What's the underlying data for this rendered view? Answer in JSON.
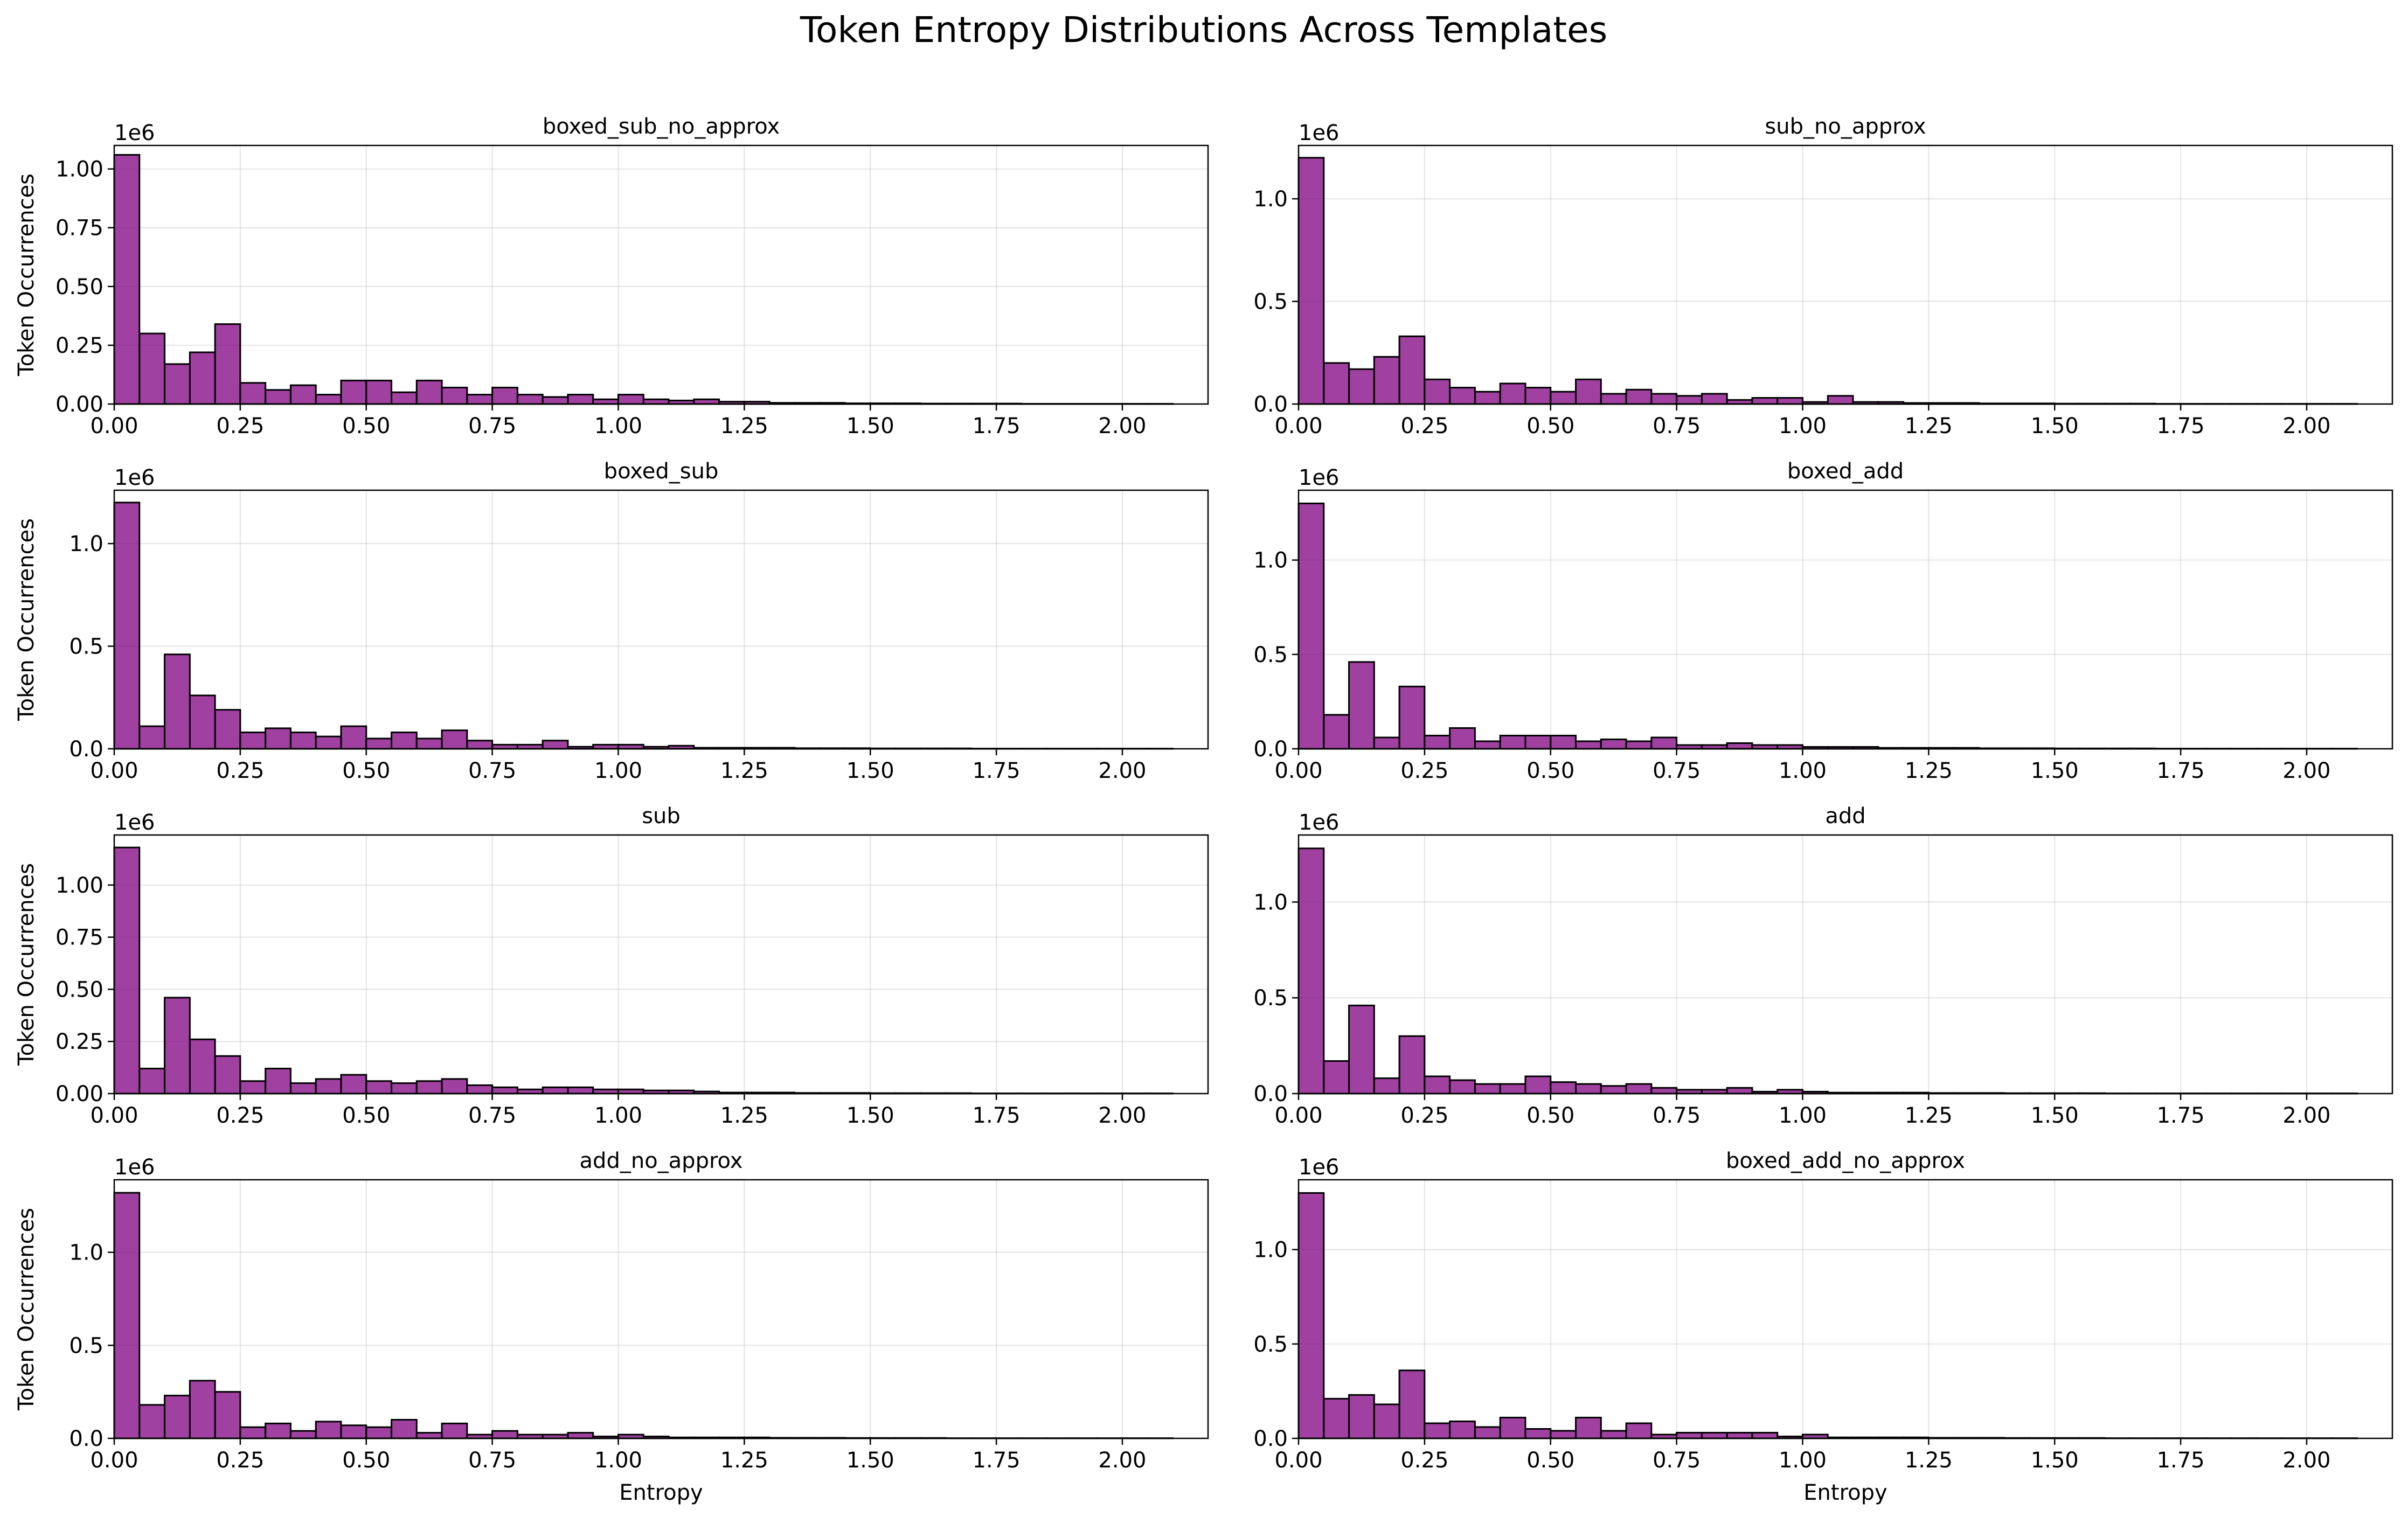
{
  "figure": {
    "title": "Token Entropy Distributions Across Templates",
    "bar_color": "#800080",
    "bar_edge_color": "#000000"
  },
  "chart_data": [
    {
      "type": "bar",
      "title": "boxed_sub_no_approx",
      "xlabel": "",
      "ylabel": "Token Occurrences",
      "y_offset_label": "1e6",
      "xlim": [
        0,
        2.17
      ],
      "ylim": [
        0,
        1.1
      ],
      "xticks": [
        "0.00",
        "0.25",
        "0.50",
        "0.75",
        "1.00",
        "1.25",
        "1.50",
        "1.75",
        "2.00"
      ],
      "yticks": [
        "0.00",
        "0.25",
        "0.50",
        "0.75",
        "1.00"
      ],
      "bin_width": 0.05,
      "values": [
        1.06,
        0.3,
        0.17,
        0.22,
        0.34,
        0.09,
        0.06,
        0.08,
        0.04,
        0.1,
        0.1,
        0.05,
        0.1,
        0.07,
        0.04,
        0.07,
        0.04,
        0.03,
        0.04,
        0.02,
        0.04,
        0.02,
        0.015,
        0.02,
        0.01,
        0.01,
        0.005,
        0.005,
        0.005,
        0.003,
        0.003,
        0.003,
        0.002,
        0.002,
        0.002,
        0.002,
        0.001,
        0.001,
        0.001,
        0.001,
        0.001,
        0.001
      ]
    },
    {
      "type": "bar",
      "title": "sub_no_approx",
      "xlabel": "",
      "ylabel": "",
      "y_offset_label": "1e6",
      "xlim": [
        0,
        2.17
      ],
      "ylim": [
        0,
        1.26
      ],
      "xticks": [
        "0.00",
        "0.25",
        "0.50",
        "0.75",
        "1.00",
        "1.25",
        "1.50",
        "1.75",
        "2.00"
      ],
      "yticks": [
        "0.0",
        "0.5",
        "1.0"
      ],
      "bin_width": 0.05,
      "values": [
        1.2,
        0.2,
        0.17,
        0.23,
        0.33,
        0.12,
        0.08,
        0.06,
        0.1,
        0.08,
        0.06,
        0.12,
        0.05,
        0.07,
        0.05,
        0.04,
        0.05,
        0.02,
        0.03,
        0.03,
        0.01,
        0.04,
        0.01,
        0.01,
        0.005,
        0.005,
        0.005,
        0.003,
        0.003,
        0.003,
        0.002,
        0.002,
        0.002,
        0.002,
        0.001,
        0.001,
        0.001,
        0.001,
        0.001,
        0.001,
        0.001,
        0.001
      ]
    },
    {
      "type": "bar",
      "title": "boxed_sub",
      "xlabel": "",
      "ylabel": "Token Occurrences",
      "y_offset_label": "1e6",
      "xlim": [
        0,
        2.17
      ],
      "ylim": [
        0,
        1.26
      ],
      "xticks": [
        "0.00",
        "0.25",
        "0.50",
        "0.75",
        "1.00",
        "1.25",
        "1.50",
        "1.75",
        "2.00"
      ],
      "yticks": [
        "0.0",
        "0.5",
        "1.0"
      ],
      "bin_width": 0.05,
      "values": [
        1.2,
        0.11,
        0.46,
        0.26,
        0.19,
        0.08,
        0.1,
        0.08,
        0.06,
        0.11,
        0.05,
        0.08,
        0.05,
        0.09,
        0.04,
        0.02,
        0.02,
        0.04,
        0.01,
        0.02,
        0.02,
        0.01,
        0.015,
        0.005,
        0.005,
        0.005,
        0.005,
        0.003,
        0.003,
        0.003,
        0.002,
        0.002,
        0.002,
        0.002,
        0.001,
        0.001,
        0.001,
        0.001,
        0.001,
        0.001,
        0.001,
        0.001
      ]
    },
    {
      "type": "bar",
      "title": "boxed_add",
      "xlabel": "",
      "ylabel": "",
      "y_offset_label": "1e6",
      "xlim": [
        0,
        2.17
      ],
      "ylim": [
        0,
        1.37
      ],
      "xticks": [
        "0.00",
        "0.25",
        "0.50",
        "0.75",
        "1.00",
        "1.25",
        "1.50",
        "1.75",
        "2.00"
      ],
      "yticks": [
        "0.0",
        "0.5",
        "1.0"
      ],
      "bin_width": 0.05,
      "values": [
        1.3,
        0.18,
        0.46,
        0.06,
        0.33,
        0.07,
        0.11,
        0.04,
        0.07,
        0.07,
        0.07,
        0.04,
        0.05,
        0.04,
        0.06,
        0.02,
        0.02,
        0.03,
        0.02,
        0.02,
        0.01,
        0.01,
        0.01,
        0.005,
        0.005,
        0.005,
        0.005,
        0.003,
        0.003,
        0.003,
        0.002,
        0.002,
        0.002,
        0.002,
        0.001,
        0.001,
        0.001,
        0.001,
        0.001,
        0.001,
        0.001,
        0.001
      ]
    },
    {
      "type": "bar",
      "title": "sub",
      "xlabel": "",
      "ylabel": "Token Occurrences",
      "y_offset_label": "1e6",
      "xlim": [
        0,
        2.17
      ],
      "ylim": [
        0,
        1.24
      ],
      "xticks": [
        "0.00",
        "0.25",
        "0.50",
        "0.75",
        "1.00",
        "1.25",
        "1.50",
        "1.75",
        "2.00"
      ],
      "yticks": [
        "0.00",
        "0.25",
        "0.50",
        "0.75",
        "1.00"
      ],
      "bin_width": 0.05,
      "values": [
        1.18,
        0.12,
        0.46,
        0.26,
        0.18,
        0.06,
        0.12,
        0.05,
        0.07,
        0.09,
        0.06,
        0.05,
        0.06,
        0.07,
        0.04,
        0.03,
        0.02,
        0.03,
        0.03,
        0.02,
        0.02,
        0.015,
        0.015,
        0.01,
        0.005,
        0.005,
        0.005,
        0.003,
        0.003,
        0.003,
        0.002,
        0.002,
        0.002,
        0.002,
        0.001,
        0.001,
        0.001,
        0.001,
        0.001,
        0.001,
        0.001,
        0.001
      ]
    },
    {
      "type": "bar",
      "title": "add",
      "xlabel": "",
      "ylabel": "",
      "y_offset_label": "1e6",
      "xlim": [
        0,
        2.17
      ],
      "ylim": [
        0,
        1.35
      ],
      "xticks": [
        "0.00",
        "0.25",
        "0.50",
        "0.75",
        "1.00",
        "1.25",
        "1.50",
        "1.75",
        "2.00"
      ],
      "yticks": [
        "0.0",
        "0.5",
        "1.0"
      ],
      "bin_width": 0.05,
      "values": [
        1.28,
        0.17,
        0.46,
        0.08,
        0.3,
        0.09,
        0.07,
        0.05,
        0.05,
        0.09,
        0.06,
        0.05,
        0.04,
        0.05,
        0.03,
        0.02,
        0.02,
        0.03,
        0.01,
        0.02,
        0.01,
        0.005,
        0.005,
        0.005,
        0.005,
        0.003,
        0.003,
        0.003,
        0.002,
        0.002,
        0.002,
        0.002,
        0.001,
        0.001,
        0.001,
        0.001,
        0.001,
        0.001,
        0.001,
        0.001,
        0.001,
        0.001
      ]
    },
    {
      "type": "bar",
      "title": "add_no_approx",
      "xlabel": "Entropy",
      "ylabel": "Token Occurrences",
      "y_offset_label": "1e6",
      "xlim": [
        0,
        2.17
      ],
      "ylim": [
        0,
        1.39
      ],
      "xticks": [
        "0.00",
        "0.25",
        "0.50",
        "0.75",
        "1.00",
        "1.25",
        "1.50",
        "1.75",
        "2.00"
      ],
      "yticks": [
        "0.0",
        "0.5",
        "1.0"
      ],
      "bin_width": 0.05,
      "values": [
        1.32,
        0.18,
        0.23,
        0.31,
        0.25,
        0.06,
        0.08,
        0.04,
        0.09,
        0.07,
        0.06,
        0.1,
        0.03,
        0.08,
        0.02,
        0.04,
        0.02,
        0.02,
        0.03,
        0.01,
        0.02,
        0.01,
        0.005,
        0.005,
        0.005,
        0.005,
        0.003,
        0.003,
        0.003,
        0.002,
        0.002,
        0.002,
        0.002,
        0.001,
        0.001,
        0.001,
        0.001,
        0.001,
        0.001,
        0.001,
        0.001,
        0.001
      ]
    },
    {
      "type": "bar",
      "title": "boxed_add_no_approx",
      "xlabel": "Entropy",
      "ylabel": "",
      "y_offset_label": "1e6",
      "xlim": [
        0,
        2.17
      ],
      "ylim": [
        0,
        1.37
      ],
      "xticks": [
        "0.00",
        "0.25",
        "0.50",
        "0.75",
        "1.00",
        "1.25",
        "1.50",
        "1.75",
        "2.00"
      ],
      "yticks": [
        "0.0",
        "0.5",
        "1.0"
      ],
      "bin_width": 0.05,
      "values": [
        1.3,
        0.21,
        0.23,
        0.18,
        0.36,
        0.08,
        0.09,
        0.06,
        0.11,
        0.05,
        0.04,
        0.11,
        0.04,
        0.08,
        0.02,
        0.03,
        0.03,
        0.03,
        0.03,
        0.01,
        0.02,
        0.005,
        0.005,
        0.005,
        0.005,
        0.003,
        0.003,
        0.003,
        0.002,
        0.002,
        0.002,
        0.002,
        0.001,
        0.001,
        0.001,
        0.001,
        0.001,
        0.001,
        0.001,
        0.001,
        0.001,
        0.001
      ]
    }
  ]
}
